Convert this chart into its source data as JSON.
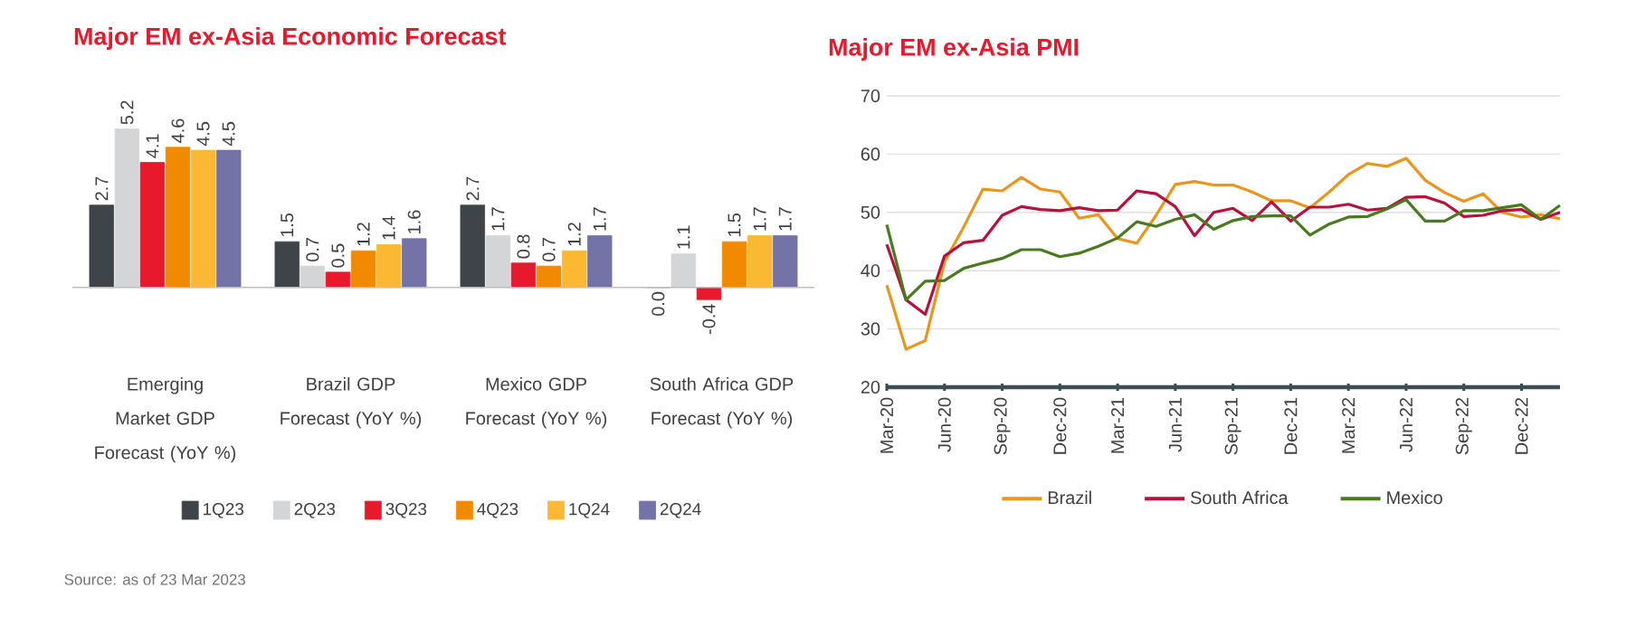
{
  "chart_data": [
    {
      "type": "bar",
      "title": "Major EM ex-Asia Economic Forecast",
      "categories": [
        "Emerging Market GDP Forecast (YoY %)",
        "Brazil GDP Forecast (YoY %)",
        "Mexico GDP Forecast (YoY %)",
        "South Africa GDP Forecast (YoY %)"
      ],
      "legend": "bottom",
      "series": [
        {
          "name": "1Q23",
          "color": "#3f4448",
          "values": [
            2.7,
            1.5,
            2.7,
            0.0
          ],
          "value_labels": [
            "2.7",
            "1.5",
            "2.7",
            "0.0"
          ]
        },
        {
          "name": "2Q23",
          "color": "#d3d5d7",
          "values": [
            5.2,
            0.7,
            1.7,
            1.1
          ],
          "value_labels": [
            "5.2",
            "0.7",
            "1.7",
            "1.1"
          ]
        },
        {
          "name": "3Q23",
          "color": "#e8192c",
          "values": [
            4.1,
            0.5,
            0.8,
            -0.4
          ],
          "value_labels": [
            "4.1",
            "0.5",
            "0.8",
            "-0.4"
          ]
        },
        {
          "name": "4Q23",
          "color": "#f28a00",
          "values": [
            4.6,
            1.2,
            0.7,
            1.5
          ],
          "value_labels": [
            "4.6",
            "1.2",
            "0.7",
            "1.5"
          ]
        },
        {
          "name": "1Q24",
          "color": "#fbb833",
          "values": [
            4.5,
            1.4,
            1.2,
            1.7
          ],
          "value_labels": [
            "4.5",
            "1.4",
            "1.2",
            "1.7"
          ]
        },
        {
          "name": "2Q24",
          "color": "#7373a8",
          "values": [
            4.5,
            1.6,
            1.7,
            1.7
          ],
          "value_labels": [
            "4.5",
            "1.6",
            "1.7",
            "1.7"
          ]
        }
      ],
      "annotations": [
        "Source: as of 23 Mar 2023"
      ]
    },
    {
      "type": "line",
      "title": "Major EM ex-Asia PMI",
      "legend": "bottom",
      "grid": "y",
      "xlim": [
        "2020-03",
        "2023-02"
      ],
      "ylim": [
        20,
        70
      ],
      "yticks": [
        20,
        30,
        40,
        50,
        60,
        70
      ],
      "xticks": [
        {
          "value": "2020-03",
          "label": "Mar-20"
        },
        {
          "value": "2020-06",
          "label": "Jun-20"
        },
        {
          "value": "2020-09",
          "label": "Sep-20"
        },
        {
          "value": "2020-12",
          "label": "Dec-20"
        },
        {
          "value": "2021-03",
          "label": "Mar-21"
        },
        {
          "value": "2021-06",
          "label": "Jun-21"
        },
        {
          "value": "2021-09",
          "label": "Sep-21"
        },
        {
          "value": "2021-12",
          "label": "Dec-21"
        },
        {
          "value": "2022-03",
          "label": "Mar-22"
        },
        {
          "value": "2022-06",
          "label": "Jun-22"
        },
        {
          "value": "2022-09",
          "label": "Sep-22"
        },
        {
          "value": "2022-12",
          "label": "Dec-22"
        }
      ],
      "x": [
        "2020-03",
        "2020-04",
        "2020-05",
        "2020-06",
        "2020-07",
        "2020-08",
        "2020-09",
        "2020-10",
        "2020-11",
        "2020-12",
        "2021-01",
        "2021-02",
        "2021-03",
        "2021-04",
        "2021-05",
        "2021-06",
        "2021-07",
        "2021-08",
        "2021-09",
        "2021-10",
        "2021-11",
        "2021-12",
        "2022-01",
        "2022-02",
        "2022-03",
        "2022-04",
        "2022-05",
        "2022-06",
        "2022-07",
        "2022-08",
        "2022-09",
        "2022-10",
        "2022-11",
        "2022-12",
        "2023-01",
        "2023-02"
      ],
      "series": [
        {
          "name": "Brazil",
          "color": "#e8961e",
          "values": [
            37.5,
            26.5,
            28,
            41.5,
            47.5,
            54,
            53.7,
            56,
            54,
            53.5,
            49,
            49.6,
            45.5,
            44.7,
            49.5,
            54.8,
            55.3,
            54.7,
            54.7,
            53.5,
            52,
            52,
            50.8,
            53.5,
            56.5,
            58.4,
            57.9,
            59.3,
            55.5,
            53.4,
            51.9,
            53.2,
            50,
            49.2,
            49.6,
            48.9
          ]
        },
        {
          "name": "South Africa",
          "color": "#b5123d",
          "values": [
            44.5,
            35,
            32.5,
            42.5,
            44.8,
            45.2,
            49.5,
            51,
            50.5,
            50.3,
            50.8,
            50.3,
            50.4,
            53.7,
            53.2,
            51,
            46,
            50,
            50.7,
            48.6,
            51.8,
            48.5,
            50.9,
            50.9,
            51.4,
            50.4,
            50.7,
            52.6,
            52.7,
            51.6,
            49.3,
            49.5,
            50.3,
            50.5,
            48.8,
            50
          ]
        },
        {
          "name": "Mexico",
          "color": "#4a7a1f",
          "values": [
            47.9,
            35,
            38.2,
            38.3,
            40.4,
            41.3,
            42.1,
            43.6,
            43.6,
            42.4,
            43,
            44.2,
            45.6,
            48.4,
            47.6,
            48.8,
            49.6,
            47.1,
            48.6,
            49.3,
            49.4,
            49.4,
            46.1,
            48,
            49.2,
            49.3,
            50.6,
            52.2,
            48.5,
            48.5,
            50.3,
            50.3,
            50.8,
            51.3,
            48.8,
            51.2
          ]
        }
      ]
    }
  ]
}
